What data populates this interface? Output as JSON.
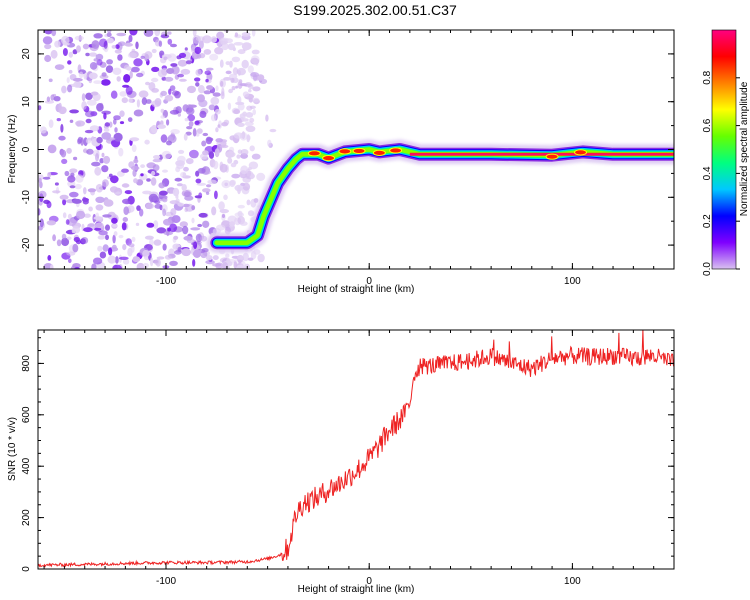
{
  "title": "S199.2025.302.00.51.C37",
  "colorbar": {
    "label": "Normalized spectral amplitude",
    "ticks": [
      "0.0",
      "0.2",
      "0.4",
      "0.6",
      "0.8"
    ],
    "tick_values": [
      0.0,
      0.2,
      0.4,
      0.6,
      0.8
    ],
    "range": [
      0,
      1
    ],
    "colors": [
      "#d9c2f0",
      "#7f00ff",
      "#0000ff",
      "#00c8ff",
      "#00ff80",
      "#66ff00",
      "#ffff00",
      "#ff8000",
      "#ff0000",
      "#ff0080"
    ]
  },
  "chart_data": [
    {
      "type": "heatmap",
      "title": "S199.2025.302.00.51.C37",
      "xlabel": "Height of straight line (km)",
      "ylabel": "Frequency (Hz)",
      "xlim": [
        -163,
        150
      ],
      "ylim": [
        -25,
        25
      ],
      "x_ticks": [
        -100,
        0,
        100
      ],
      "x_tick_labels": [
        "-100",
        "0",
        "100"
      ],
      "y_ticks": [
        -20,
        -10,
        0,
        10,
        20
      ],
      "y_tick_labels": [
        "-20",
        "-10",
        "0",
        "10",
        "20"
      ],
      "noise_region_x": [
        -163,
        -55
      ],
      "signal_track": [
        {
          "x": -75,
          "y": -19.5
        },
        {
          "x": -60,
          "y": -19.5
        },
        {
          "x": -55,
          "y": -18
        },
        {
          "x": -52,
          "y": -14
        },
        {
          "x": -48,
          "y": -10
        },
        {
          "x": -45,
          "y": -7
        },
        {
          "x": -40,
          "y": -4
        },
        {
          "x": -36,
          "y": -2
        },
        {
          "x": -33,
          "y": -1
        },
        {
          "x": -25,
          "y": -1
        },
        {
          "x": -20,
          "y": -1.8
        },
        {
          "x": -12,
          "y": -0.5
        },
        {
          "x": 0,
          "y": 0
        },
        {
          "x": 5,
          "y": -0.5
        },
        {
          "x": 15,
          "y": 0
        },
        {
          "x": 25,
          "y": -1
        },
        {
          "x": 60,
          "y": -1
        },
        {
          "x": 90,
          "y": -1.2
        },
        {
          "x": 105,
          "y": -0.5
        },
        {
          "x": 120,
          "y": -1
        },
        {
          "x": 150,
          "y": -1
        }
      ],
      "hot_spots": [
        {
          "x": -27,
          "y": -0.8
        },
        {
          "x": -20,
          "y": -1.8
        },
        {
          "x": -12,
          "y": -0.4
        },
        {
          "x": -5,
          "y": -0.3
        },
        {
          "x": 5,
          "y": -0.7
        },
        {
          "x": 13,
          "y": -0.2
        },
        {
          "x": 90,
          "y": -1.5
        },
        {
          "x": 104,
          "y": -0.6
        }
      ]
    },
    {
      "type": "line",
      "xlabel": "Height of straight line (km)",
      "ylabel": "SNR (10 * v/v)",
      "xlim": [
        -163,
        150
      ],
      "ylim": [
        0,
        930
      ],
      "x_ticks": [
        -100,
        0,
        100
      ],
      "x_tick_labels": [
        "-100",
        "0",
        "100"
      ],
      "y_ticks": [
        0,
        200,
        400,
        600,
        800
      ],
      "y_tick_labels": [
        "0",
        "200",
        "400",
        "600",
        "800"
      ],
      "series": [
        {
          "name": "SNR",
          "color": "#ee2222",
          "x": [
            -163,
            -140,
            -120,
            -100,
            -80,
            -60,
            -50,
            -44,
            -40,
            -38,
            -36,
            -34,
            -32,
            -30,
            -25,
            -20,
            -15,
            -10,
            -5,
            0,
            5,
            10,
            15,
            20,
            22,
            25,
            30,
            40,
            50,
            60,
            70,
            80,
            90,
            100,
            110,
            120,
            130,
            140,
            150
          ],
          "values": [
            15,
            18,
            22,
            25,
            25,
            28,
            40,
            55,
            80,
            150,
            210,
            240,
            260,
            265,
            280,
            310,
            330,
            360,
            390,
            430,
            480,
            540,
            580,
            640,
            760,
            790,
            790,
            800,
            810,
            830,
            800,
            780,
            820,
            830,
            825,
            830,
            820,
            830,
            800
          ]
        }
      ]
    }
  ]
}
